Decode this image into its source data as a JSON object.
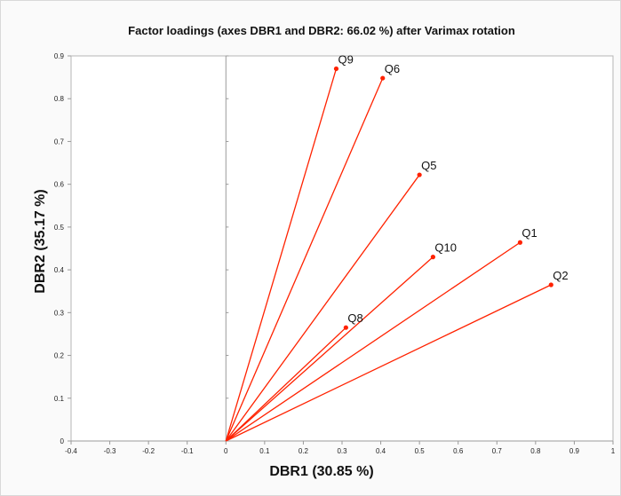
{
  "chart_data": {
    "type": "scatter",
    "title": "Factor loadings (axes DBR1 and DBR2: 66.02 %) after Varimax rotation",
    "xlabel": "DBR1 (30.85 %)",
    "ylabel": "DBR2 (35.17 %)",
    "xlim": [
      -0.4,
      1
    ],
    "ylim": [
      0,
      0.9
    ],
    "xticks": [
      "-0.4",
      "-0.3",
      "-0.2",
      "-0.1",
      "0",
      "0.1",
      "0.2",
      "0.3",
      "0.4",
      "0.5",
      "0.6",
      "0.7",
      "0.8",
      "0.9",
      "1"
    ],
    "yticks": [
      "0",
      "0.1",
      "0.2",
      "0.3",
      "0.4",
      "0.5",
      "0.6",
      "0.7",
      "0.8",
      "0.9"
    ],
    "grid": false,
    "vectors_from_origin": true,
    "color": "#ff2200",
    "points": [
      {
        "label": "Q9",
        "x": 0.285,
        "y": 0.87
      },
      {
        "label": "Q6",
        "x": 0.405,
        "y": 0.848
      },
      {
        "label": "Q5",
        "x": 0.5,
        "y": 0.622
      },
      {
        "label": "Q10",
        "x": 0.535,
        "y": 0.43
      },
      {
        "label": "Q1",
        "x": 0.76,
        "y": 0.464
      },
      {
        "label": "Q2",
        "x": 0.84,
        "y": 0.365
      },
      {
        "label": "Q8",
        "x": 0.31,
        "y": 0.265
      }
    ]
  }
}
